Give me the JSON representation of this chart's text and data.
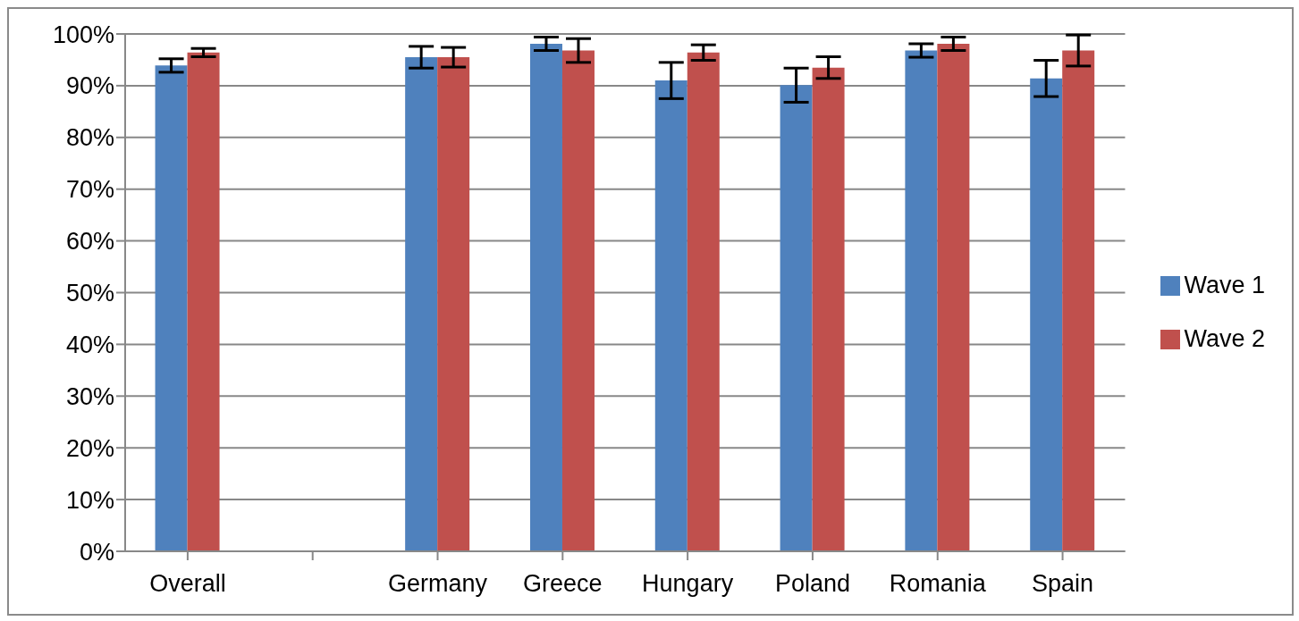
{
  "chart_data": {
    "type": "bar",
    "categories": [
      "Overall",
      null,
      "Germany",
      "Greece",
      "Hungary",
      "Poland",
      "Romania",
      "Spain"
    ],
    "series": [
      {
        "name": "Wave 1",
        "color": "#4f81bd",
        "values": [
          93.9,
          null,
          95.5,
          98.1,
          91.0,
          90.1,
          96.8,
          91.4
        ],
        "errors": [
          1.3,
          null,
          2.1,
          1.3,
          3.5,
          3.3,
          1.3,
          3.5
        ]
      },
      {
        "name": "Wave 2",
        "color": "#c0504d",
        "values": [
          96.4,
          null,
          95.5,
          96.8,
          96.4,
          93.5,
          98.1,
          96.8
        ],
        "errors": [
          0.8,
          null,
          1.9,
          2.3,
          1.5,
          2.1,
          1.3,
          3.0
        ]
      }
    ],
    "ylim": [
      0,
      100
    ],
    "yticks": [
      {
        "value": 0,
        "label": "0%"
      },
      {
        "value": 10,
        "label": "10%"
      },
      {
        "value": 20,
        "label": "20%"
      },
      {
        "value": 30,
        "label": "30%"
      },
      {
        "value": 40,
        "label": "40%"
      },
      {
        "value": 50,
        "label": "50%"
      },
      {
        "value": 60,
        "label": "60%"
      },
      {
        "value": 70,
        "label": "70%"
      },
      {
        "value": 80,
        "label": "80%"
      },
      {
        "value": 90,
        "label": "90%"
      },
      {
        "value": 100,
        "label": "100%"
      }
    ],
    "grid": "y",
    "legend": "right"
  }
}
